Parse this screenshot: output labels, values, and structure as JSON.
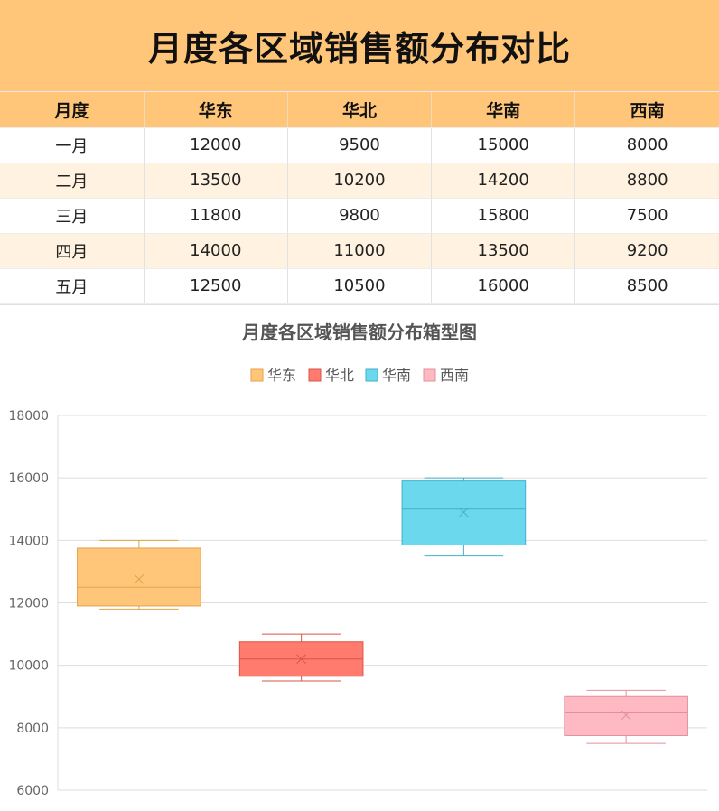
{
  "header": {
    "title": "月度各区域销售额分布对比"
  },
  "table": {
    "columns": [
      "月度",
      "华东",
      "华北",
      "华南",
      "西南"
    ],
    "rows": [
      [
        "一月",
        "12000",
        "9500",
        "15000",
        "8000"
      ],
      [
        "二月",
        "13500",
        "10200",
        "14200",
        "8800"
      ],
      [
        "三月",
        "11800",
        "9800",
        "15800",
        "7500"
      ],
      [
        "四月",
        "14000",
        "11000",
        "13500",
        "9200"
      ],
      [
        "五月",
        "12500",
        "10500",
        "16000",
        "8500"
      ]
    ]
  },
  "chart_data": {
    "type": "boxplot",
    "title": "月度各区域销售额分布箱型图",
    "xlabel": "",
    "ylabel": "",
    "ylim": [
      6000,
      18000
    ],
    "yticks": [
      "6000",
      "8000",
      "10000",
      "12000",
      "14000",
      "16000",
      "18000"
    ],
    "grid": true,
    "legend_position": "top",
    "series": [
      {
        "name": "华东",
        "color": "#ffc67a",
        "stroke": "#e0a24a",
        "min": 11800,
        "q1": 11900,
        "median": 12500,
        "q3": 13750,
        "max": 14000,
        "mean": 12760
      },
      {
        "name": "华北",
        "color": "#ff7b6e",
        "stroke": "#d9554a",
        "min": 9500,
        "q1": 9650,
        "median": 10200,
        "q3": 10750,
        "max": 11000,
        "mean": 10200
      },
      {
        "name": "华南",
        "color": "#6bd8ee",
        "stroke": "#3fb2c9",
        "min": 13500,
        "q1": 13850,
        "median": 15000,
        "q3": 15900,
        "max": 16000,
        "mean": 14900
      },
      {
        "name": "西南",
        "color": "#ffb9c3",
        "stroke": "#e3909b",
        "min": 7500,
        "q1": 7750,
        "median": 8500,
        "q3": 9000,
        "max": 9200,
        "mean": 8400
      }
    ]
  }
}
